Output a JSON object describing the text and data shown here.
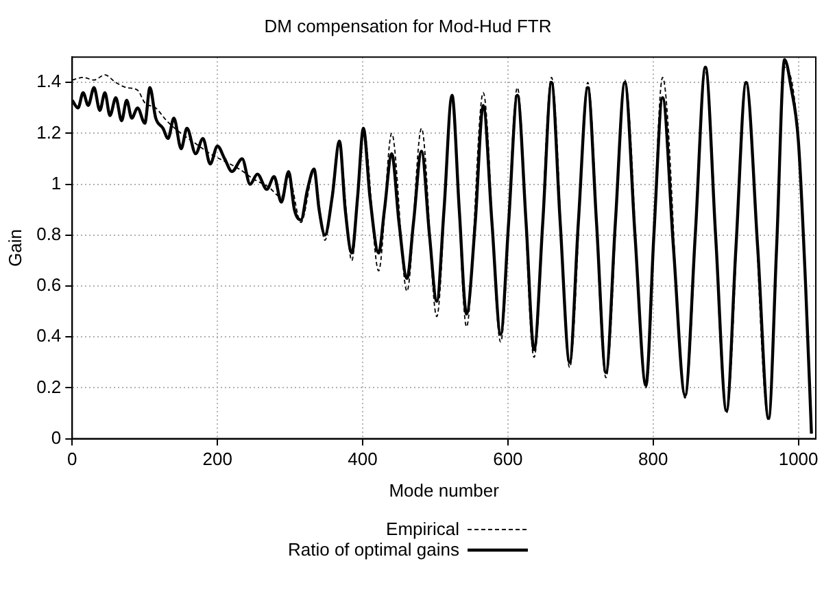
{
  "chart_data": {
    "type": "line",
    "title": "DM compensation for Mod-Hud FTR",
    "xlabel": "Mode number",
    "ylabel": "Gain",
    "xlim": [
      0,
      1024
    ],
    "xticks": [
      0,
      200,
      400,
      600,
      800,
      1000
    ],
    "ylim": [
      0,
      1.5
    ],
    "yticks": [
      0,
      0.2,
      0.4,
      0.6,
      0.8,
      1,
      1.2,
      1.4
    ],
    "grid": true,
    "legend": "bottom",
    "marker": "none",
    "series": [
      {
        "name": "Empirical",
        "color": "#000000",
        "line_style": "dashed",
        "x": [
          0,
          15,
          30,
          45,
          60,
          75,
          90,
          100,
          115,
          130,
          150,
          170,
          190,
          210,
          230,
          250,
          270,
          288,
          298,
          315,
          333,
          348,
          368,
          385,
          401,
          422,
          440,
          461,
          481,
          502,
          523,
          543,
          566,
          590,
          613,
          636,
          660,
          685,
          710,
          735,
          761,
          790,
          813,
          844,
          872,
          901,
          928,
          959,
          981,
          1000,
          1018
        ],
        "values": [
          1.41,
          1.42,
          1.41,
          1.43,
          1.4,
          1.38,
          1.37,
          1.32,
          1.3,
          1.25,
          1.2,
          1.16,
          1.12,
          1.09,
          1.06,
          1.02,
          0.99,
          0.95,
          1.03,
          0.85,
          1.05,
          0.78,
          1.15,
          0.7,
          1.22,
          0.66,
          1.2,
          0.58,
          1.22,
          0.48,
          1.34,
          0.44,
          1.36,
          0.38,
          1.38,
          0.32,
          1.42,
          0.28,
          1.4,
          0.24,
          1.41,
          0.2,
          1.42,
          0.16,
          1.44,
          0.1,
          1.4,
          0.07,
          1.46,
          1.17,
          0.02
        ]
      },
      {
        "name": "Ratio of optimal gains",
        "color": "#000000",
        "line_style": "solid",
        "x": [
          0,
          8,
          15,
          22,
          30,
          38,
          45,
          52,
          60,
          68,
          75,
          82,
          90,
          100,
          107,
          115,
          125,
          132,
          140,
          150,
          158,
          170,
          180,
          190,
          200,
          210,
          220,
          234,
          245,
          255,
          268,
          278,
          288,
          298,
          306,
          315,
          324,
          333,
          340,
          348,
          358,
          368,
          376,
          385,
          393,
          401,
          410,
          422,
          430,
          440,
          450,
          461,
          470,
          481,
          492,
          502,
          512,
          523,
          533,
          543,
          555,
          566,
          578,
          590,
          601,
          613,
          625,
          636,
          648,
          660,
          672,
          685,
          697,
          710,
          722,
          735,
          748,
          761,
          775,
          790,
          801,
          813,
          828,
          844,
          858,
          872,
          886,
          901,
          914,
          928,
          944,
          959,
          970,
          981,
          990,
          1000,
          1010,
          1018
        ],
        "values": [
          1.33,
          1.3,
          1.36,
          1.31,
          1.38,
          1.29,
          1.36,
          1.27,
          1.34,
          1.25,
          1.33,
          1.26,
          1.3,
          1.24,
          1.38,
          1.26,
          1.22,
          1.18,
          1.26,
          1.14,
          1.22,
          1.12,
          1.18,
          1.08,
          1.15,
          1.1,
          1.05,
          1.1,
          1.0,
          1.04,
          0.98,
          1.03,
          0.93,
          1.05,
          0.9,
          0.86,
          0.98,
          1.06,
          0.9,
          0.8,
          0.95,
          1.17,
          0.9,
          0.73,
          0.95,
          1.22,
          0.95,
          0.73,
          0.9,
          1.12,
          0.85,
          0.63,
          0.85,
          1.13,
          0.8,
          0.54,
          0.9,
          1.35,
          0.9,
          0.49,
          0.85,
          1.31,
          0.85,
          0.41,
          0.85,
          1.35,
          0.85,
          0.35,
          0.85,
          1.4,
          0.85,
          0.3,
          0.85,
          1.38,
          0.85,
          0.26,
          0.85,
          1.4,
          0.8,
          0.21,
          0.8,
          1.34,
          0.75,
          0.17,
          0.8,
          1.46,
          0.8,
          0.11,
          0.75,
          1.4,
          0.75,
          0.08,
          0.75,
          1.49,
          1.38,
          1.17,
          0.6,
          0.02
        ]
      }
    ]
  }
}
